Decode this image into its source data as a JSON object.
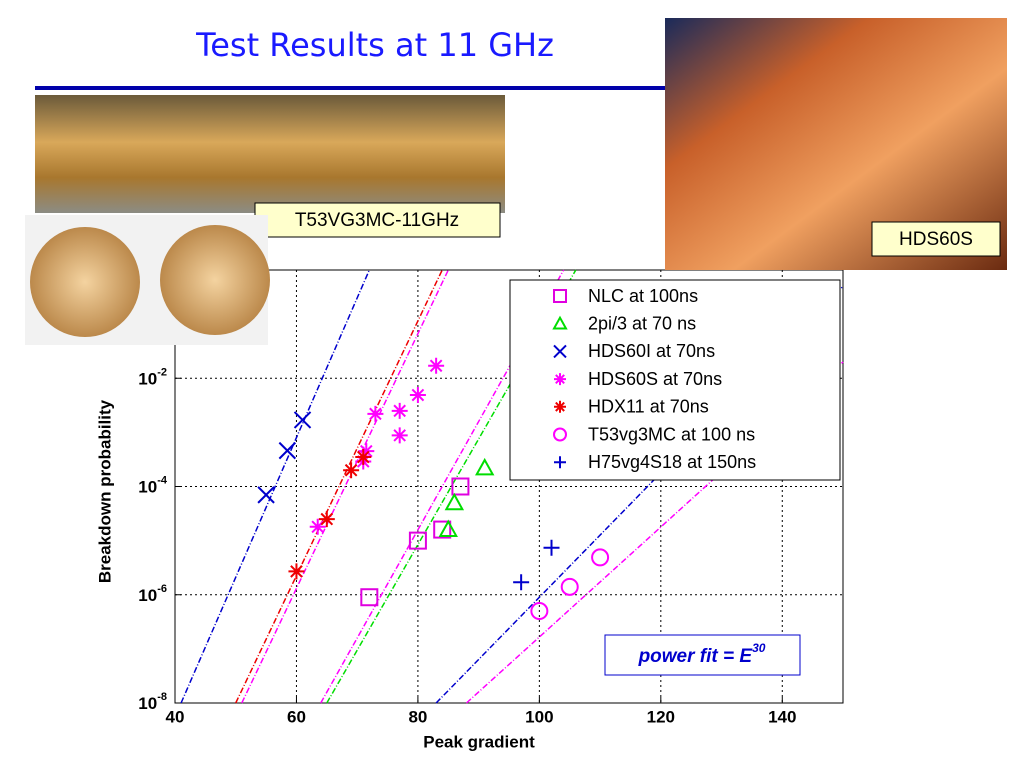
{
  "slide": {
    "title": "Test Results at 11 GHz",
    "photo_labels": [
      "T53VG3MC-11GHz",
      "HDS60S"
    ]
  },
  "chart_data": {
    "type": "scatter",
    "x_label": "Peak gradient",
    "y_label": "Breakdown probability",
    "xlim": [
      40,
      150
    ],
    "xticks": [
      40,
      60,
      80,
      100,
      120,
      140
    ],
    "ylim": [
      1e-08,
      1
    ],
    "log_y": true,
    "grid": true,
    "yticks": [
      {
        "value": 1e-08,
        "label": {
          "base": "10",
          "exponent": "-8"
        }
      },
      {
        "value": 1e-06,
        "label": {
          "base": "10",
          "exponent": "-6"
        }
      },
      {
        "value": 0.0001,
        "label": {
          "base": "10",
          "exponent": "-4"
        }
      },
      {
        "value": 0.01,
        "label": {
          "base": "10",
          "exponent": "-2"
        }
      }
    ],
    "series": [
      {
        "name": "NLC at 100ns",
        "color": "#e000e0",
        "marker": "square",
        "x": [
          72,
          80,
          84,
          87
        ],
        "values": [
          9e-07,
          1e-05,
          1.6e-05,
          0.0001
        ]
      },
      {
        "name": "2pi/3 at 70 ns",
        "color": "#00dd00",
        "marker": "triangle",
        "x": [
          85,
          86,
          91
        ],
        "values": [
          1.6e-05,
          5e-05,
          0.00022
        ]
      },
      {
        "name": "HDS60I at 70ns",
        "color": "#0000cc",
        "marker": "x",
        "x": [
          55,
          58.5,
          61
        ],
        "values": [
          7e-05,
          0.00046,
          0.0017
        ]
      },
      {
        "name": "HDS60S at 70ns",
        "color": "#ff00ff",
        "marker": "star",
        "x": [
          63.5,
          71,
          71.5,
          73,
          77,
          77,
          80,
          83
        ],
        "values": [
          1.8e-05,
          0.00029,
          0.00045,
          0.0022,
          0.00088,
          0.0025,
          0.0049,
          0.017
        ]
      },
      {
        "name": "HDX11 at 70ns",
        "color": "#ee0000",
        "marker": "star",
        "x": [
          60,
          65,
          69,
          71
        ],
        "values": [
          2.7e-06,
          2.5e-05,
          0.0002,
          0.00035
        ]
      },
      {
        "name": "T53vg3MC at 100 ns",
        "color": "#ff00ff",
        "marker": "circle",
        "x": [
          100,
          105,
          110
        ],
        "values": [
          5e-07,
          1.4e-06,
          4.9e-06
        ]
      },
      {
        "name": "H75vg4S18 at 150ns",
        "color": "#0000cc",
        "marker": "plus",
        "x": [
          97,
          102
        ],
        "values": [
          1.7e-06,
          7.4e-06
        ]
      }
    ],
    "fits": [
      {
        "color": "#0000cc",
        "x": [
          41,
          72
        ],
        "values": [
          1e-08,
          1
        ]
      },
      {
        "color": "#ee0000",
        "x": [
          50,
          84
        ],
        "values": [
          1e-08,
          1
        ]
      },
      {
        "color": "#ff00ff",
        "x": [
          51,
          85
        ],
        "values": [
          1e-08,
          1
        ]
      },
      {
        "color": "#00dd00",
        "x": [
          65,
          106
        ],
        "values": [
          1e-08,
          1
        ]
      },
      {
        "color": "#ff00ff",
        "x": [
          64,
          104
        ],
        "values": [
          1e-08,
          1
        ]
      },
      {
        "color": "#0000cc",
        "x": [
          83,
          150
        ],
        "values": [
          1e-08,
          0.5
        ]
      },
      {
        "color": "#ff00ff",
        "x": [
          88,
          150
        ],
        "values": [
          1e-08,
          0.02
        ]
      }
    ],
    "annotation": {
      "text": "power fit = E",
      "exponent": "30"
    }
  }
}
